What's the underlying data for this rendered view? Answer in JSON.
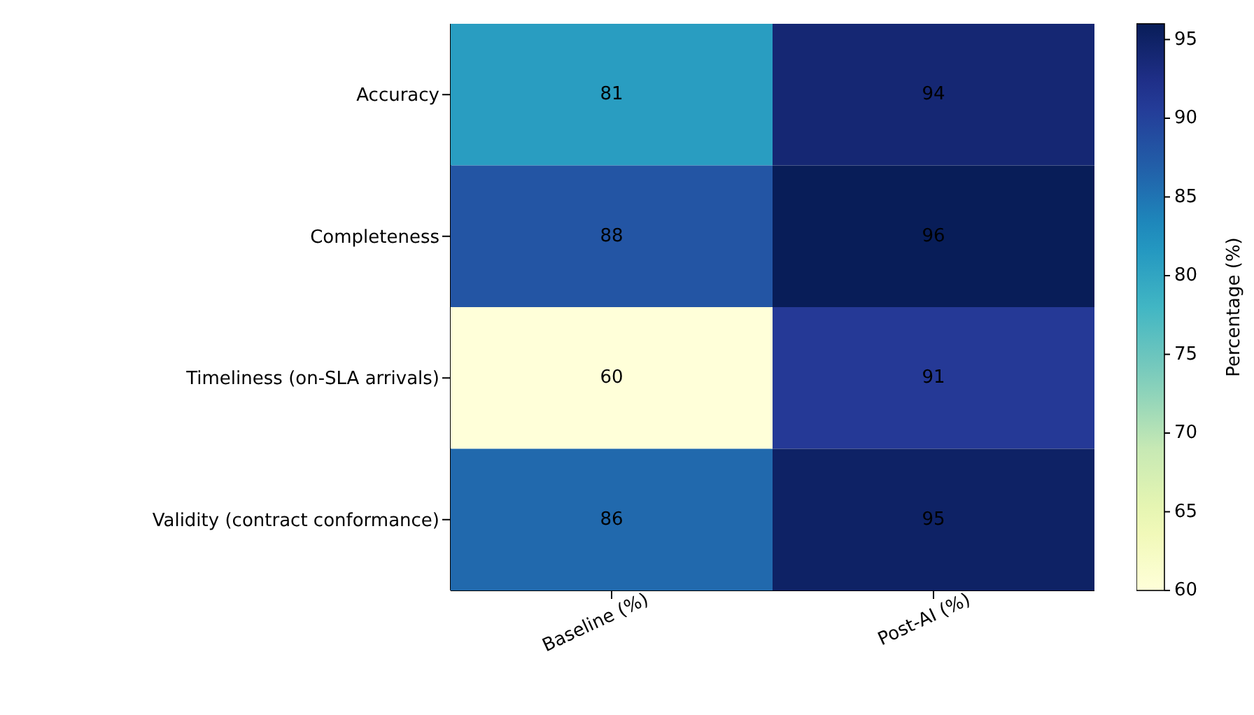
{
  "chart_data": {
    "type": "heatmap",
    "clabel": "Percentage (%)",
    "data_labels": true,
    "categories": [
      "Baseline (%)",
      "Post-AI (%)"
    ],
    "y_categories": [
      "Accuracy",
      "Completeness",
      "Timeliness (on-SLA arrivals)",
      "Validity (contract conformance)"
    ],
    "cells": [
      [
        81,
        94
      ],
      [
        88,
        96
      ],
      [
        60,
        91
      ],
      [
        86,
        95
      ]
    ],
    "clim": [
      60,
      96
    ],
    "cticks": [
      60,
      65,
      70,
      75,
      80,
      85,
      90,
      95
    ]
  }
}
